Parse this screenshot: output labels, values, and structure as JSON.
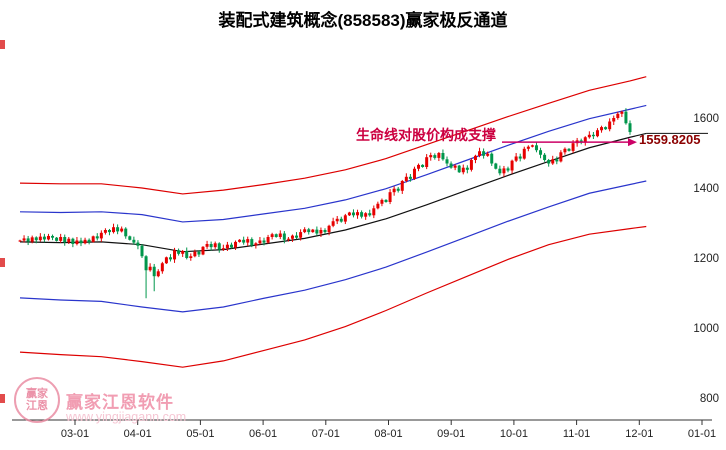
{
  "title": "装配式建筑概念(858583)赢家极反通道",
  "annotation": {
    "text": "生命线对股价构成支撑",
    "text_color": "#cc0040",
    "line_color": "#cc0066",
    "price_label": "1559.8205",
    "price_color": "#8b0000"
  },
  "watermark": {
    "logo_text": "赢家江恩",
    "brand": "赢家江恩软件",
    "url": "www.yingjiagann.com"
  },
  "chart_data": {
    "type": "candlestick",
    "title": "装配式建筑概念(858583)赢家极反通道",
    "x_tick_labels": [
      "03-01",
      "04-01",
      "05-01",
      "06-01",
      "07-01",
      "08-01",
      "09-01",
      "10-01",
      "11-01",
      "12-01",
      "01-01"
    ],
    "y_tick_values": [
      1600,
      1400,
      1200,
      1000,
      800
    ],
    "ylim": [
      800,
      1740
    ],
    "grid": false,
    "legend": "none",
    "last_price": 1559.8205,
    "support_level": 1531,
    "first_open": 1248,
    "closes": [
      1250,
      1256,
      1247,
      1259,
      1251,
      1261,
      1253,
      1263,
      1258,
      1249,
      1260,
      1245,
      1255,
      1240,
      1250,
      1242,
      1252,
      1246,
      1262,
      1256,
      1272,
      1280,
      1274,
      1288,
      1276,
      1284,
      1262,
      1252,
      1244,
      1235,
      1205,
      1165,
      1175,
      1148,
      1162,
      1185,
      1202,
      1196,
      1222,
      1212,
      1220,
      1200,
      1205,
      1218,
      1210,
      1232,
      1240,
      1231,
      1242,
      1224,
      1228,
      1238,
      1230,
      1246,
      1252,
      1244,
      1254,
      1236,
      1242,
      1250,
      1244,
      1260,
      1268,
      1260,
      1270,
      1252,
      1255,
      1264,
      1258,
      1274,
      1282,
      1274,
      1281,
      1270,
      1280,
      1274,
      1292,
      1305,
      1312,
      1304,
      1322,
      1330,
      1322,
      1331,
      1318,
      1328,
      1322,
      1342,
      1355,
      1366,
      1360,
      1388,
      1398,
      1392,
      1420,
      1432,
      1426,
      1455,
      1466,
      1460,
      1488,
      1494,
      1486,
      1500,
      1482,
      1470,
      1458,
      1464,
      1445,
      1458,
      1452,
      1480,
      1492,
      1505,
      1492,
      1498,
      1470,
      1455,
      1442,
      1456,
      1450,
      1478,
      1490,
      1484,
      1512,
      1518,
      1522,
      1508,
      1495,
      1480,
      1470,
      1482,
      1476,
      1502,
      1512,
      1506,
      1528,
      1536,
      1530,
      1545,
      1552,
      1548,
      1565,
      1574,
      1568,
      1590,
      1600,
      1612,
      1618,
      1585,
      1559.82
    ],
    "wick_lows": {
      "31": 1085,
      "33": 1105
    },
    "channel": {
      "sample_idx": [
        0,
        10,
        20,
        30,
        40,
        50,
        60,
        70,
        80,
        90,
        100,
        110,
        120,
        130,
        140,
        150,
        154
      ],
      "upper_red": [
        1414,
        1412,
        1412,
        1400,
        1383,
        1394,
        1410,
        1428,
        1452,
        1484,
        1524,
        1564,
        1604,
        1642,
        1679,
        1706,
        1718
      ],
      "upper_blue": [
        1332,
        1330,
        1332,
        1324,
        1303,
        1310,
        1326,
        1342,
        1366,
        1398,
        1438,
        1480,
        1522,
        1562,
        1598,
        1625,
        1636
      ],
      "middle": [
        1246,
        1244,
        1246,
        1238,
        1218,
        1224,
        1240,
        1256,
        1280,
        1312,
        1352,
        1394,
        1436,
        1476,
        1515,
        1545,
        1556
      ],
      "lower_blue": [
        1086,
        1080,
        1076,
        1060,
        1046,
        1060,
        1085,
        1108,
        1138,
        1174,
        1217,
        1261,
        1305,
        1346,
        1385,
        1410,
        1420
      ],
      "lower_red": [
        931,
        924,
        918,
        904,
        888,
        906,
        936,
        966,
        1004,
        1050,
        1100,
        1148,
        1196,
        1238,
        1268,
        1284,
        1290
      ]
    },
    "colors": {
      "up": "#e60000",
      "down": "#00964b",
      "channel_red": "#dd0000",
      "channel_blue": "#2a35cc",
      "middle": "#111111"
    }
  }
}
